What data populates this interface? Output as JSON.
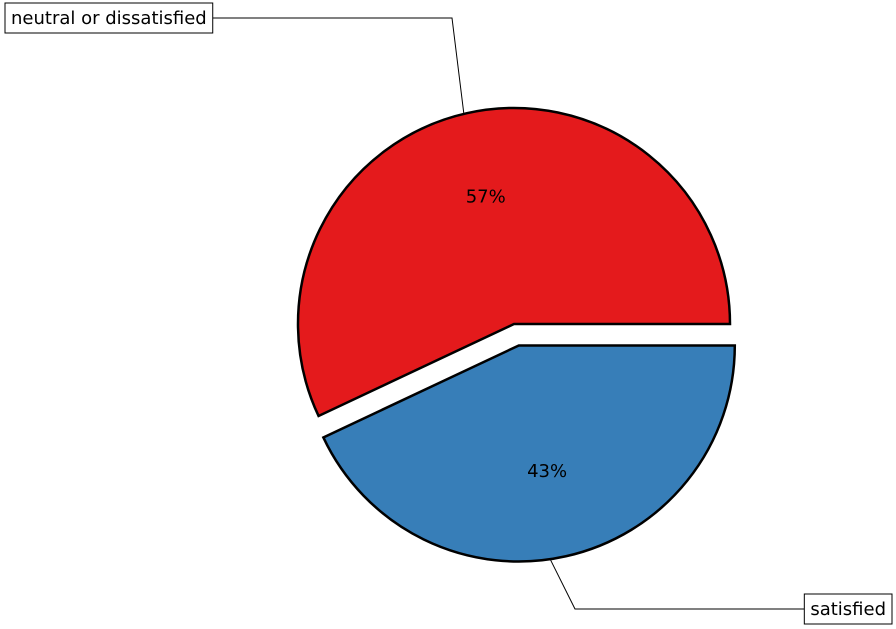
{
  "chart_data": {
    "type": "pie",
    "title": "",
    "slices": [
      {
        "label": "neutral or dissatisfied",
        "value": 57,
        "percent_label": "57%",
        "color": "#e41a1c",
        "exploded": false
      },
      {
        "label": "satisfied",
        "value": 43,
        "percent_label": "43%",
        "color": "#377eb8",
        "exploded": true
      }
    ],
    "start_angle_deg": 0,
    "direction": "counterclockwise",
    "legend": "none",
    "edge_color": "#000000"
  }
}
